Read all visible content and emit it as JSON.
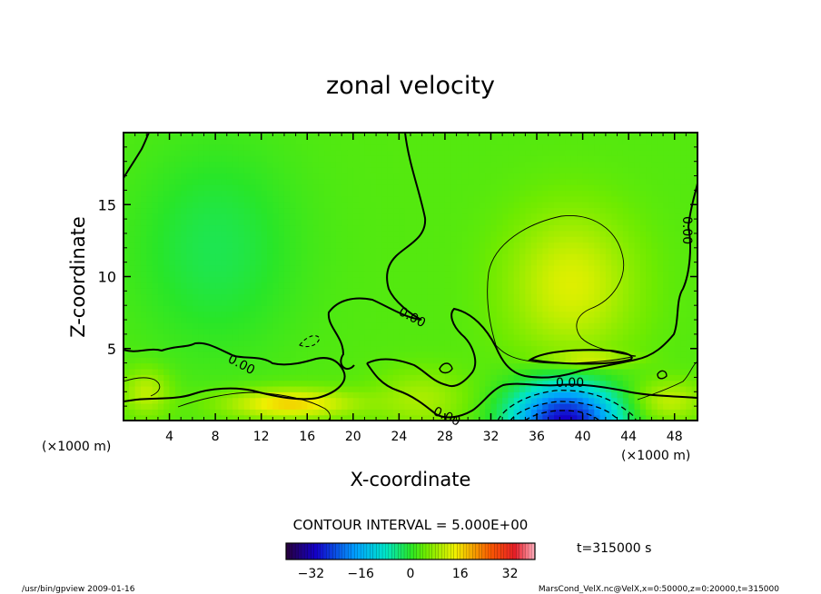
{
  "chart_data": {
    "type": "heatmap",
    "title": "zonal velocity",
    "xlabel": "X-coordinate",
    "ylabel": "Z-coordinate",
    "x_unit_left": "(×1000 m)",
    "x_unit_right": "(×1000 m)",
    "xlim": [
      0,
      50
    ],
    "ylim": [
      0,
      20
    ],
    "x_ticks": [
      4,
      8,
      12,
      16,
      20,
      24,
      28,
      32,
      36,
      40,
      44,
      48
    ],
    "y_ticks": [
      5,
      10,
      15
    ],
    "contour_interval_text": "CONTOUR INTERVAL = 5.000E+00",
    "zero_contour_label": "0.00",
    "time_text": "t=315000 s",
    "colorbar": {
      "vmin": -40,
      "vmax": 40,
      "ticks": [
        -32,
        -16,
        0,
        16,
        32
      ]
    },
    "features": [
      {
        "x": 38.5,
        "z": 0.0,
        "value": -34,
        "rx": 4.5,
        "rz": 2.6
      },
      {
        "x": 39.0,
        "z": 9.5,
        "value": 10,
        "rx": 5.5,
        "rz": 5.0
      },
      {
        "x": 40.5,
        "z": 4.3,
        "value": 8,
        "rx": 3.5,
        "rz": 0.5
      },
      {
        "x": 14.5,
        "z": 1.2,
        "value": 14,
        "rx": 5.5,
        "rz": 1.0
      },
      {
        "x": 2.0,
        "z": 2.0,
        "value": 8,
        "rx": 2.0,
        "rz": 1.6
      },
      {
        "x": 26.0,
        "z": 1.5,
        "value": 6,
        "rx": 4.0,
        "rz": 2.0
      },
      {
        "x": 8.0,
        "z": 12.0,
        "value": -5,
        "rx": 7.0,
        "rz": 7.0
      },
      {
        "x": 47.5,
        "z": 1.4,
        "value": 8,
        "rx": 3.0,
        "rz": 1.4
      }
    ]
  },
  "footer": {
    "left": "/usr/bin/gpview   2009-01-16",
    "right": "MarsCond_VelX.nc@VelX,x=0:50000,z=0:20000,t=315000"
  }
}
